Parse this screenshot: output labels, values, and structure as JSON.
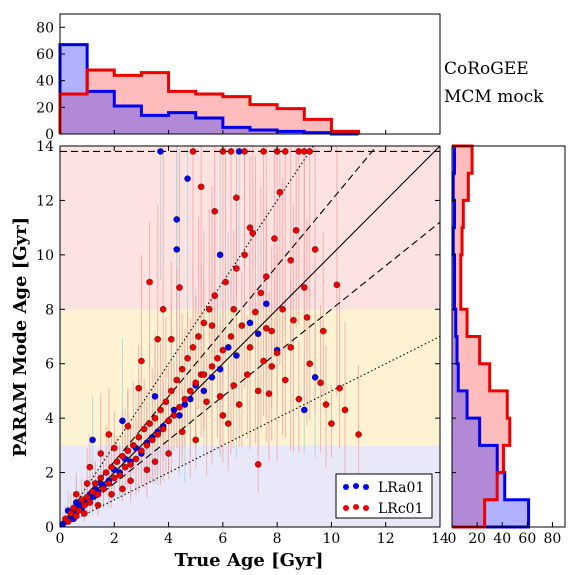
{
  "annotation": {
    "line1": "CoRoGEE",
    "line2": "MCM mock"
  },
  "colors": {
    "lra01": "#0000ee",
    "lrc01": "#ee0000",
    "band_old": "#fde2e2",
    "band_mid": "#fdf3d2",
    "band_young": "#e8e8f8"
  },
  "chart_data": [
    {
      "id": "scatter",
      "type": "scatter",
      "xlabel": "True Age [Gyr]",
      "ylabel": "PARAM Mode Age [Gyr]",
      "xlim": [
        0,
        14
      ],
      "ylim": [
        0,
        14
      ],
      "xticks": [
        0,
        2,
        4,
        6,
        8,
        10,
        12,
        14
      ],
      "yticks": [
        0,
        2,
        4,
        6,
        8,
        10,
        12,
        14
      ],
      "bands": [
        {
          "from": 0,
          "to": 3,
          "color": "band_young"
        },
        {
          "from": 3,
          "to": 8,
          "color": "band_mid"
        },
        {
          "from": 8,
          "to": 14,
          "color": "band_old"
        }
      ],
      "ref_lines": [
        {
          "slope": 1.0,
          "style": "solid"
        },
        {
          "slope": 1.2,
          "style": "dashed"
        },
        {
          "slope": 0.8,
          "style": "dashed"
        },
        {
          "slope": 1.5,
          "style": "dotted"
        },
        {
          "slope": 0.5,
          "style": "dotted"
        },
        {
          "slope": 0,
          "intercept": 13.8,
          "style": "dashed"
        }
      ],
      "legend": {
        "position": "lower-right",
        "entries": [
          "LRa01",
          "LRc01"
        ]
      },
      "series": [
        {
          "name": "LRa01",
          "color": "lra01",
          "points": [
            [
              0.1,
              0.1
            ],
            [
              0.2,
              0.2
            ],
            [
              0.3,
              0.3
            ],
            [
              0.4,
              0.35
            ],
            [
              0.5,
              0.5
            ],
            [
              0.6,
              0.6
            ],
            [
              0.7,
              0.8
            ],
            [
              0.8,
              0.7
            ],
            [
              0.9,
              1.0
            ],
            [
              1.0,
              0.9
            ],
            [
              1.1,
              1.2
            ],
            [
              1.2,
              1.1
            ],
            [
              1.3,
              1.4
            ],
            [
              1.4,
              1.3
            ],
            [
              1.5,
              1.6
            ],
            [
              1.6,
              1.5
            ],
            [
              1.8,
              1.7
            ],
            [
              2.0,
              2.1
            ],
            [
              2.2,
              2.0
            ],
            [
              2.4,
              2.5
            ],
            [
              2.6,
              2.4
            ],
            [
              2.8,
              2.9
            ],
            [
              3.0,
              2.7
            ],
            [
              3.2,
              3.1
            ],
            [
              3.4,
              3.3
            ],
            [
              3.6,
              3.5
            ],
            [
              3.8,
              3.7
            ],
            [
              4.0,
              3.9
            ],
            [
              4.2,
              4.3
            ],
            [
              4.4,
              4.1
            ],
            [
              4.6,
              4.5
            ],
            [
              4.8,
              4.7
            ],
            [
              5.0,
              5.2
            ],
            [
              5.3,
              5.0
            ],
            [
              5.6,
              5.5
            ],
            [
              5.9,
              5.8
            ],
            [
              6.2,
              6.6
            ],
            [
              6.5,
              6.3
            ],
            [
              7.0,
              7.5
            ],
            [
              7.3,
              7.1
            ],
            [
              7.6,
              8.2
            ],
            [
              8.0,
              6.5
            ],
            [
              9.0,
              4.3
            ],
            [
              9.4,
              5.5
            ],
            [
              2.3,
              3.9
            ],
            [
              1.2,
              3.2
            ],
            [
              3.5,
              4.8
            ],
            [
              4.3,
              11.3
            ],
            [
              4.3,
              10.2
            ],
            [
              4.7,
              12.8
            ],
            [
              3.7,
              13.8
            ],
            [
              5.9,
              10.0
            ],
            [
              6.6,
              13.8
            ],
            [
              0.3,
              0.6
            ],
            [
              0.5,
              0.3
            ],
            [
              0.6,
              0.9
            ]
          ]
        },
        {
          "name": "LRc01",
          "color": "lrc01",
          "points": [
            [
              0.2,
              0.3
            ],
            [
              0.3,
              0.2
            ],
            [
              0.4,
              0.5
            ],
            [
              0.5,
              0.7
            ],
            [
              0.6,
              0.4
            ],
            [
              0.7,
              0.6
            ],
            [
              0.8,
              1.0
            ],
            [
              0.9,
              0.8
            ],
            [
              1.0,
              1.1
            ],
            [
              1.1,
              0.9
            ],
            [
              1.2,
              1.3
            ],
            [
              1.3,
              1.6
            ],
            [
              1.4,
              1.2
            ],
            [
              1.5,
              1.8
            ],
            [
              1.6,
              1.4
            ],
            [
              1.7,
              2.0
            ],
            [
              1.8,
              1.6
            ],
            [
              1.9,
              2.2
            ],
            [
              2.0,
              1.8
            ],
            [
              2.1,
              2.4
            ],
            [
              2.2,
              1.9
            ],
            [
              2.3,
              2.6
            ],
            [
              2.4,
              2.2
            ],
            [
              2.5,
              2.8
            ],
            [
              2.6,
              2.3
            ],
            [
              2.7,
              3.0
            ],
            [
              2.8,
              2.5
            ],
            [
              2.9,
              3.3
            ],
            [
              3.0,
              2.8
            ],
            [
              3.1,
              3.6
            ],
            [
              3.2,
              3.0
            ],
            [
              3.3,
              3.8
            ],
            [
              3.4,
              3.2
            ],
            [
              3.5,
              4.0
            ],
            [
              3.6,
              3.4
            ],
            [
              3.7,
              4.3
            ],
            [
              3.8,
              3.6
            ],
            [
              3.9,
              4.6
            ],
            [
              4.0,
              3.9
            ],
            [
              4.1,
              5.0
            ],
            [
              4.2,
              4.1
            ],
            [
              4.3,
              5.4
            ],
            [
              4.4,
              4.4
            ],
            [
              4.5,
              5.8
            ],
            [
              4.6,
              4.7
            ],
            [
              4.7,
              6.2
            ],
            [
              4.8,
              5.0
            ],
            [
              4.9,
              6.6
            ],
            [
              5.0,
              5.3
            ],
            [
              5.1,
              7.0
            ],
            [
              5.2,
              5.6
            ],
            [
              5.3,
              7.5
            ],
            [
              5.4,
              4.6
            ],
            [
              5.5,
              8.0
            ],
            [
              5.6,
              5.9
            ],
            [
              5.7,
              8.5
            ],
            [
              5.8,
              6.2
            ],
            [
              5.9,
              4.8
            ],
            [
              6.0,
              6.5
            ],
            [
              6.1,
              9.0
            ],
            [
              6.2,
              3.8
            ],
            [
              6.3,
              7.0
            ],
            [
              6.4,
              5.2
            ],
            [
              6.5,
              9.5
            ],
            [
              6.6,
              4.5
            ],
            [
              6.7,
              7.4
            ],
            [
              6.8,
              10.0
            ],
            [
              6.9,
              5.6
            ],
            [
              7.0,
              6.6
            ],
            [
              7.1,
              10.8
            ],
            [
              7.2,
              7.9
            ],
            [
              7.3,
              5.0
            ],
            [
              7.4,
              8.6
            ],
            [
              7.5,
              6.1
            ],
            [
              7.6,
              9.2
            ],
            [
              7.7,
              4.9
            ],
            [
              7.8,
              7.2
            ],
            [
              7.9,
              10.6
            ],
            [
              8.0,
              6.4
            ],
            [
              8.2,
              8.0
            ],
            [
              8.3,
              5.4
            ],
            [
              8.5,
              9.8
            ],
            [
              8.6,
              7.6
            ],
            [
              8.8,
              4.7
            ],
            [
              9.0,
              8.8
            ],
            [
              9.2,
              6.0
            ],
            [
              9.4,
              10.2
            ],
            [
              9.6,
              5.3
            ],
            [
              9.8,
              4.5
            ],
            [
              10.0,
              3.8
            ],
            [
              10.3,
              5.1
            ],
            [
              10.5,
              4.3
            ],
            [
              11.0,
              3.4
            ],
            [
              7.3,
              2.3
            ],
            [
              6.0,
              13.8
            ],
            [
              6.3,
              13.8
            ],
            [
              6.8,
              13.8
            ],
            [
              7.5,
              13.8
            ],
            [
              8.0,
              13.8
            ],
            [
              8.3,
              13.8
            ],
            [
              8.8,
              13.8
            ],
            [
              9.0,
              13.8
            ],
            [
              9.2,
              13.8
            ],
            [
              4.9,
              13.8
            ],
            [
              5.2,
              12.5
            ],
            [
              5.7,
              11.6
            ],
            [
              6.5,
              12.1
            ],
            [
              7.0,
              11.0
            ],
            [
              8.1,
              12.3
            ],
            [
              8.7,
              10.9
            ],
            [
              4.4,
              8.8
            ],
            [
              5.6,
              7.4
            ],
            [
              3.3,
              9.0
            ],
            [
              3.8,
              8.0
            ],
            [
              3.0,
              6.1
            ],
            [
              3.6,
              6.9
            ],
            [
              4.1,
              6.9
            ],
            [
              2.9,
              5.1
            ],
            [
              1.8,
              3.4
            ],
            [
              1.5,
              2.7
            ],
            [
              2.5,
              3.7
            ],
            [
              1.0,
              1.6
            ],
            [
              0.6,
              1.2
            ],
            [
              1.1,
              2.2
            ],
            [
              2.0,
              2.9
            ],
            [
              2.6,
              1.7
            ],
            [
              3.2,
              2.1
            ],
            [
              4.5,
              3.5
            ],
            [
              5.0,
              3.2
            ],
            [
              4.0,
              2.7
            ],
            [
              3.5,
              2.4
            ],
            [
              2.3,
              1.4
            ],
            [
              1.9,
              1.2
            ],
            [
              1.4,
              0.8
            ],
            [
              0.9,
              0.5
            ],
            [
              6.0,
              4.1
            ],
            [
              7.8,
              5.9
            ],
            [
              8.5,
              6.6
            ],
            [
              9.1,
              7.7
            ],
            [
              10.2,
              8.9
            ],
            [
              9.7,
              7.2
            ],
            [
              6.4,
              8.0
            ],
            [
              7.6,
              7.3
            ],
            [
              5.3,
              5.6
            ]
          ]
        }
      ]
    },
    {
      "id": "top-hist",
      "type": "histogram",
      "orientation": "vertical",
      "bin_edges": [
        0,
        1,
        2,
        3,
        4,
        5,
        6,
        7,
        8,
        9,
        10,
        11
      ],
      "ylim": [
        0,
        90
      ],
      "yticks": [
        0,
        20,
        40,
        60,
        80
      ],
      "series": [
        {
          "name": "LRa01",
          "color": "lra01",
          "values": [
            67,
            32,
            21,
            14,
            16,
            12,
            5,
            3,
            2,
            1,
            0
          ]
        },
        {
          "name": "LRc01",
          "color": "lrc01",
          "values": [
            30,
            48,
            44,
            46,
            32,
            30,
            28,
            22,
            19,
            11,
            2
          ]
        }
      ]
    },
    {
      "id": "right-hist",
      "type": "histogram",
      "orientation": "horizontal",
      "bin_edges": [
        0,
        1,
        2,
        3,
        4,
        5,
        6,
        7,
        8,
        9,
        10,
        11,
        12,
        13,
        14
      ],
      "xlim": [
        0,
        90
      ],
      "xticks": [
        0,
        20,
        40,
        60,
        80
      ],
      "series": [
        {
          "name": "LRa01",
          "color": "lra01",
          "values": [
            61,
            42,
            36,
            22,
            12,
            5,
            4,
            3,
            2,
            2,
            1,
            2,
            1,
            2
          ]
        },
        {
          "name": "LRc01",
          "color": "lrc01",
          "values": [
            26,
            36,
            41,
            46,
            44,
            30,
            22,
            12,
            7,
            7,
            8,
            9,
            13,
            16
          ]
        }
      ]
    }
  ]
}
